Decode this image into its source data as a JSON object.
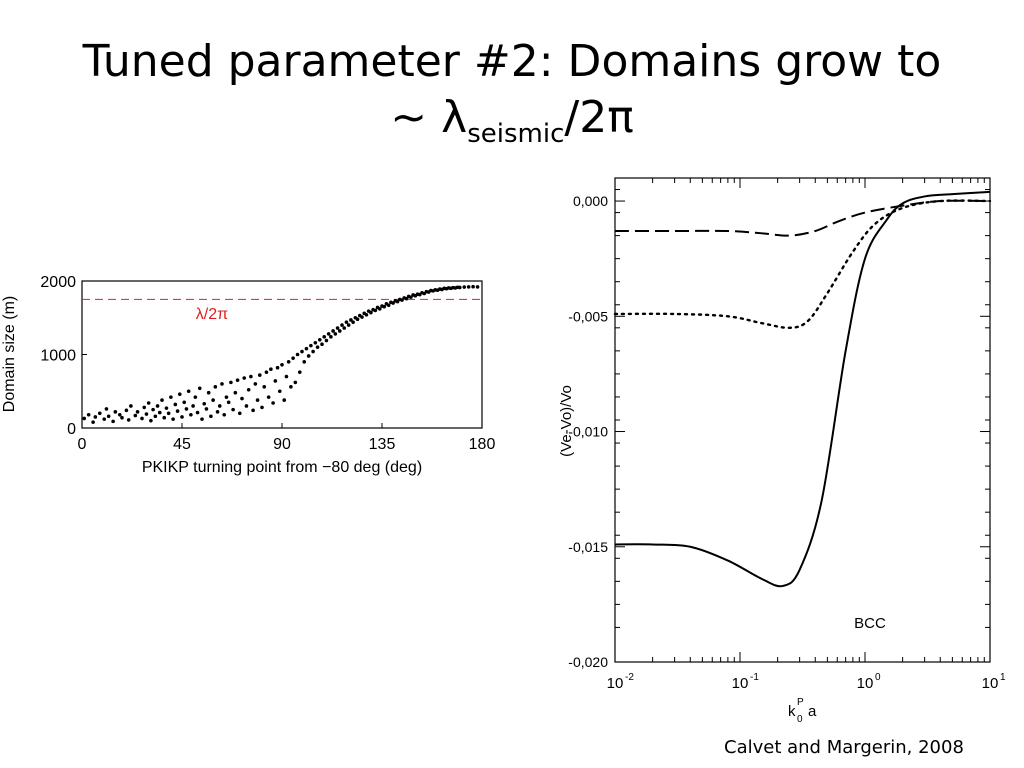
{
  "slide": {
    "title_line1": "Tuned parameter #2: Domains grow to",
    "title_prefix": "~ λ",
    "title_sub": "seismic",
    "title_suffix": "/2π",
    "citation": "Calvet and Margerin, 2008"
  },
  "chart_data": [
    {
      "type": "scatter",
      "xlabel": "PKIKP turning point from −80 deg (deg)",
      "ylabel": "Domain size (m)",
      "xlim": [
        0,
        180
      ],
      "ylim": [
        0,
        2000
      ],
      "xticks": [
        "0",
        "45",
        "90",
        "135",
        "180"
      ],
      "yticks": [
        "0",
        "1000",
        "2000"
      ],
      "reference_line": {
        "label": "λ/2π",
        "y": 1750,
        "color": "#e02020",
        "style": "dashed"
      },
      "point_color": "#000000",
      "grid": false,
      "points": [
        [
          1,
          130
        ],
        [
          3,
          180
        ],
        [
          5,
          80
        ],
        [
          6,
          150
        ],
        [
          8,
          200
        ],
        [
          10,
          120
        ],
        [
          11,
          260
        ],
        [
          12,
          160
        ],
        [
          14,
          90
        ],
        [
          15,
          220
        ],
        [
          17,
          180
        ],
        [
          18,
          140
        ],
        [
          20,
          240
        ],
        [
          21,
          110
        ],
        [
          22,
          300
        ],
        [
          24,
          170
        ],
        [
          25,
          220
        ],
        [
          27,
          130
        ],
        [
          28,
          280
        ],
        [
          29,
          190
        ],
        [
          30,
          340
        ],
        [
          31,
          100
        ],
        [
          32,
          250
        ],
        [
          33,
          160
        ],
        [
          34,
          300
        ],
        [
          35,
          210
        ],
        [
          36,
          380
        ],
        [
          37,
          140
        ],
        [
          38,
          270
        ],
        [
          39,
          200
        ],
        [
          40,
          420
        ],
        [
          41,
          120
        ],
        [
          42,
          320
        ],
        [
          43,
          230
        ],
        [
          44,
          460
        ],
        [
          45,
          150
        ],
        [
          46,
          350
        ],
        [
          47,
          260
        ],
        [
          48,
          500
        ],
        [
          49,
          180
        ],
        [
          50,
          300
        ],
        [
          51,
          420
        ],
        [
          52,
          210
        ],
        [
          53,
          540
        ],
        [
          54,
          120
        ],
        [
          55,
          330
        ],
        [
          56,
          260
        ],
        [
          57,
          480
        ],
        [
          58,
          160
        ],
        [
          59,
          380
        ],
        [
          60,
          560
        ],
        [
          61,
          220
        ],
        [
          62,
          300
        ],
        [
          63,
          600
        ],
        [
          64,
          180
        ],
        [
          65,
          420
        ],
        [
          66,
          350
        ],
        [
          67,
          620
        ],
        [
          68,
          250
        ],
        [
          69,
          480
        ],
        [
          70,
          650
        ],
        [
          71,
          200
        ],
        [
          72,
          400
        ],
        [
          73,
          680
        ],
        [
          74,
          300
        ],
        [
          75,
          520
        ],
        [
          76,
          700
        ],
        [
          77,
          240
        ],
        [
          78,
          600
        ],
        [
          79,
          380
        ],
        [
          80,
          720
        ],
        [
          81,
          280
        ],
        [
          82,
          560
        ],
        [
          83,
          760
        ],
        [
          84,
          420
        ],
        [
          85,
          800
        ],
        [
          86,
          340
        ],
        [
          87,
          640
        ],
        [
          88,
          820
        ],
        [
          89,
          500
        ],
        [
          90,
          860
        ],
        [
          91,
          380
        ],
        [
          92,
          700
        ],
        [
          93,
          900
        ],
        [
          94,
          560
        ],
        [
          95,
          950
        ],
        [
          96,
          620
        ],
        [
          97,
          1000
        ],
        [
          98,
          760
        ],
        [
          99,
          1040
        ],
        [
          100,
          900
        ],
        [
          101,
          1080
        ],
        [
          102,
          980
        ],
        [
          103,
          1120
        ],
        [
          104,
          1040
        ],
        [
          105,
          1160
        ],
        [
          106,
          1100
        ],
        [
          107,
          1200
        ],
        [
          108,
          1140
        ],
        [
          109,
          1240
        ],
        [
          110,
          1190
        ],
        [
          111,
          1280
        ],
        [
          112,
          1240
        ],
        [
          113,
          1320
        ],
        [
          114,
          1280
        ],
        [
          115,
          1360
        ],
        [
          116,
          1320
        ],
        [
          117,
          1400
        ],
        [
          118,
          1360
        ],
        [
          119,
          1440
        ],
        [
          120,
          1400
        ],
        [
          121,
          1470
        ],
        [
          122,
          1440
        ],
        [
          123,
          1500
        ],
        [
          124,
          1480
        ],
        [
          125,
          1530
        ],
        [
          126,
          1510
        ],
        [
          127,
          1560
        ],
        [
          128,
          1540
        ],
        [
          129,
          1590
        ],
        [
          130,
          1570
        ],
        [
          131,
          1610
        ],
        [
          132,
          1600
        ],
        [
          133,
          1640
        ],
        [
          134,
          1620
        ],
        [
          135,
          1660
        ],
        [
          136,
          1650
        ],
        [
          137,
          1690
        ],
        [
          138,
          1670
        ],
        [
          139,
          1710
        ],
        [
          140,
          1700
        ],
        [
          141,
          1730
        ],
        [
          142,
          1720
        ],
        [
          143,
          1750
        ],
        [
          144,
          1740
        ],
        [
          145,
          1770
        ],
        [
          146,
          1760
        ],
        [
          147,
          1790
        ],
        [
          148,
          1780
        ],
        [
          149,
          1810
        ],
        [
          150,
          1800
        ],
        [
          151,
          1820
        ],
        [
          152,
          1815
        ],
        [
          153,
          1840
        ],
        [
          154,
          1830
        ],
        [
          155,
          1855
        ],
        [
          156,
          1850
        ],
        [
          157,
          1870
        ],
        [
          158,
          1865
        ],
        [
          159,
          1880
        ],
        [
          160,
          1875
        ],
        [
          161,
          1890
        ],
        [
          162,
          1885
        ],
        [
          163,
          1900
        ],
        [
          164,
          1895
        ],
        [
          165,
          1905
        ],
        [
          166,
          1900
        ],
        [
          167,
          1910
        ],
        [
          168,
          1905
        ],
        [
          169,
          1915
        ],
        [
          170,
          1912
        ],
        [
          172,
          1918
        ],
        [
          174,
          1920
        ],
        [
          176,
          1922
        ],
        [
          178,
          1920
        ]
      ]
    },
    {
      "type": "line",
      "xlabel": "k0P a",
      "ylabel": "(Ve-Vo)/Vo",
      "xscale": "log",
      "xlim": [
        0.01,
        10
      ],
      "ylim": [
        -0.02,
        0.001
      ],
      "xticks": [
        "10-2",
        "10-1",
        "100",
        "101"
      ],
      "yticks": [
        "0,000",
        "-0,005",
        "-0,010",
        "-0,015",
        "-0,020"
      ],
      "annotation": "BCC",
      "grid": false,
      "series": [
        {
          "style": "solid",
          "x": [
            0.01,
            0.02,
            0.04,
            0.08,
            0.15,
            0.22,
            0.3,
            0.45,
            0.7,
            1.0,
            1.5,
            2.0,
            3.0,
            5.0,
            10.0
          ],
          "y": [
            -0.0149,
            -0.0149,
            -0.015,
            -0.0156,
            -0.0164,
            -0.0167,
            -0.016,
            -0.013,
            -0.0065,
            -0.0025,
            -0.0008,
            -0.0001,
            0.0002,
            0.0003,
            0.0004
          ]
        },
        {
          "style": "dashed",
          "x": [
            0.01,
            0.03,
            0.08,
            0.15,
            0.25,
            0.4,
            0.6,
            1.0,
            2.0,
            4.0,
            10.0
          ],
          "y": [
            -0.0013,
            -0.0013,
            -0.0013,
            -0.0014,
            -0.0015,
            -0.0013,
            -0.0009,
            -0.0005,
            -0.0002,
            0.0,
            0.0
          ]
        },
        {
          "style": "dotted",
          "x": [
            0.01,
            0.03,
            0.08,
            0.15,
            0.25,
            0.35,
            0.5,
            0.8,
            1.2,
            2.0,
            4.0,
            10.0
          ],
          "y": [
            -0.0049,
            -0.0049,
            -0.005,
            -0.0053,
            -0.0055,
            -0.0052,
            -0.004,
            -0.0022,
            -0.001,
            -0.0003,
            0.0,
            0.0
          ]
        }
      ]
    }
  ]
}
